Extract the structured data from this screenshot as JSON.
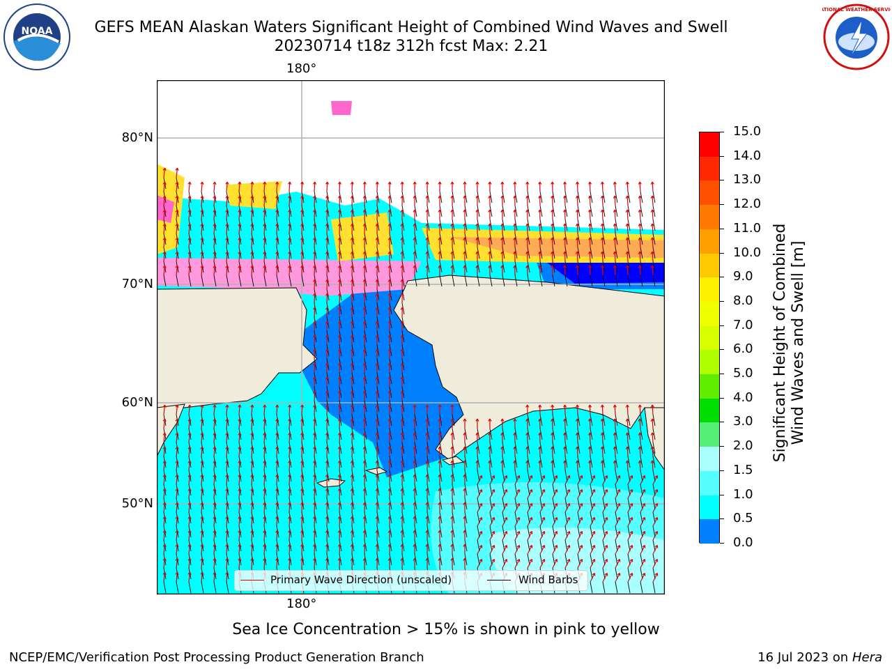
{
  "header": {
    "title_line1": "GEFS MEAN Alaskan Waters Significant Height of Combined Wind Waves and Swell",
    "title_line2": "20230714 t18z 312h fcst   Max: 2.21"
  },
  "logos": {
    "left": {
      "icon": "noaa-logo-icon",
      "text": "NOAA"
    },
    "right": {
      "icon": "nws-logo-icon",
      "text": "NATIONAL WEATHER SERVICE"
    }
  },
  "map": {
    "lon_labels": [
      "180°",
      "180°"
    ],
    "lat_labels": [
      "80°N",
      "70°N",
      "60°N",
      "50°N"
    ],
    "colors": {
      "land": "#efecdc",
      "coast": "#000000",
      "grid": "#b0b0b0",
      "wave_arrow": "#e00000",
      "wind_barb": "#000000",
      "ice_pink": "#ff66cc",
      "ice_yellow": "#ffe030"
    },
    "legend": {
      "wave_label": "Primary Wave Direction (unscaled)",
      "wind_label": "Wind Barbs"
    }
  },
  "colorbar": {
    "title_line1": "Significant Height of Combined",
    "title_line2": "Wind Waves and Swell [m]",
    "ticks": [
      "15.0",
      "14.0",
      "13.0",
      "12.0",
      "11.0",
      "10.0",
      "9.0",
      "8.0",
      "7.0",
      "6.0",
      "5.0",
      "4.0",
      "3.0",
      "2.0",
      "1.5",
      "1.0",
      "0.5",
      "0.0"
    ],
    "colors": [
      "#ff0000",
      "#ff2800",
      "#ff5000",
      "#ff7800",
      "#ffa000",
      "#ffc800",
      "#fff000",
      "#f0ff00",
      "#d8ff00",
      "#b0ff00",
      "#60ee00",
      "#00dd00",
      "#55ee77",
      "#aaffff",
      "#55ffff",
      "#00ffff",
      "#0080ff",
      "#0000ff"
    ]
  },
  "footer": {
    "note": "Sea Ice Concentration > 15% is shown in pink to yellow",
    "credit": "NCEP/EMC/Verification Post Processing Product Generation Branch",
    "date_prefix": "16 Jul 2023 on ",
    "date_machine": "Hera"
  }
}
